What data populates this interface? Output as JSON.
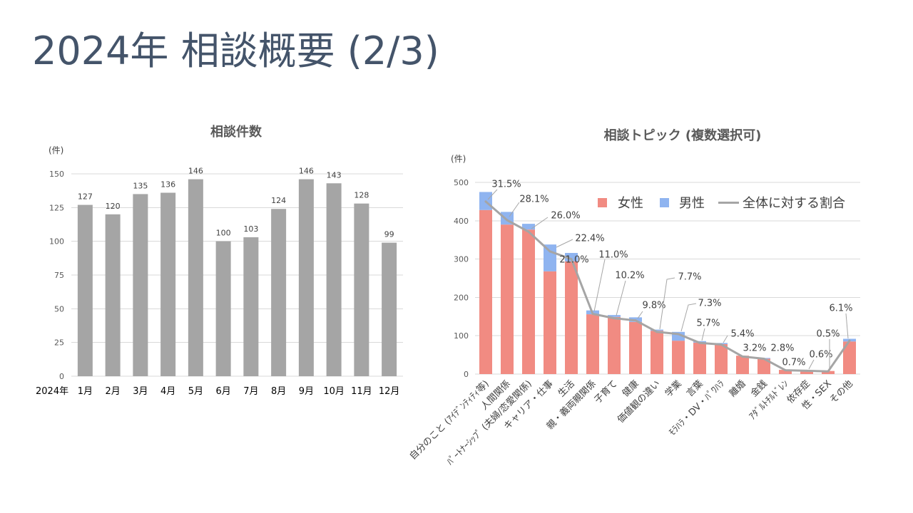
{
  "slide": {
    "title": "2024年 相談概要 (2/3)",
    "title_color": "#44546a"
  },
  "chart_data": [
    {
      "type": "bar",
      "title": "相談件数",
      "ylabel": "(件)",
      "xlabel": "2024年",
      "categories": [
        "1月",
        "2月",
        "3月",
        "4月",
        "5月",
        "6月",
        "7月",
        "8月",
        "9月",
        "10月",
        "11月",
        "12月"
      ],
      "values": [
        127,
        120,
        135,
        136,
        146,
        100,
        103,
        124,
        146,
        143,
        128,
        99
      ],
      "ylim": [
        0,
        150
      ],
      "yticks": [
        0,
        25,
        50,
        75,
        100,
        125,
        150
      ],
      "grid": true,
      "legend": "none",
      "data_labels": true,
      "colors": {
        "bar": "#a5a5a5"
      }
    },
    {
      "type": "bar",
      "stacked": true,
      "title": "相談トピック (複数選択可)",
      "ylabel": "(件)",
      "categories": [
        "自分のこと (ｱｲﾃﾞﾝﾃｨﾃｨ等)",
        "人間関係",
        "ﾊﾟｰﾄﾅｰｼｯﾌﾟ (夫婦/恋愛関係)",
        "キャリア・仕事",
        "生活",
        "親・義両親関係",
        "子育て",
        "健康",
        "価値観の違い",
        "学業",
        "言葉",
        "ﾓﾗﾊﾗ・DV・ﾊﾟﾜﾊﾗ",
        "離婚",
        "金銭",
        "ｱﾀﾞﾙﾄﾁﾙﾄﾞﾚﾝ",
        "依存症",
        "性・SEX",
        "その他"
      ],
      "series": [
        {
          "name": "女性",
          "type": "bar",
          "color": "#f18b82",
          "values": [
            428,
            390,
            377,
            268,
            294,
            156,
            149,
            136,
            113,
            87,
            82,
            78,
            48,
            40,
            11,
            9,
            8,
            85
          ]
        },
        {
          "name": "男性",
          "type": "bar",
          "color": "#8fb4f0",
          "values": [
            47,
            33,
            15,
            70,
            22,
            10,
            5,
            12,
            3,
            23,
            4,
            3,
            0,
            2,
            0,
            0,
            0,
            7
          ]
        },
        {
          "name": "全体に対する割合",
          "type": "line",
          "axis": "secondary",
          "color": "#a5a5a5",
          "values": [
            31.5,
            28.1,
            26.0,
            22.4,
            21.0,
            11.0,
            10.2,
            9.8,
            7.7,
            7.3,
            5.7,
            5.4,
            3.2,
            2.8,
            0.7,
            0.6,
            0.5,
            6.1
          ],
          "labels": [
            "31.5%",
            "28.1%",
            "26.0%",
            "22.4%",
            "21.0%",
            "11.0%",
            "10.2%",
            "9.8%",
            "7.7%",
            "7.3%",
            "5.7%",
            "5.4%",
            "3.2%",
            "2.8%",
            "0.7%",
            "0.6%",
            "0.5%",
            "6.1%"
          ]
        }
      ],
      "ylim": [
        0,
        500
      ],
      "yticks": [
        0,
        100,
        200,
        300,
        400,
        500
      ],
      "y2lim": [
        0,
        35
      ],
      "y2_axis_shown": false,
      "grid": true,
      "legend": "top-right"
    }
  ]
}
